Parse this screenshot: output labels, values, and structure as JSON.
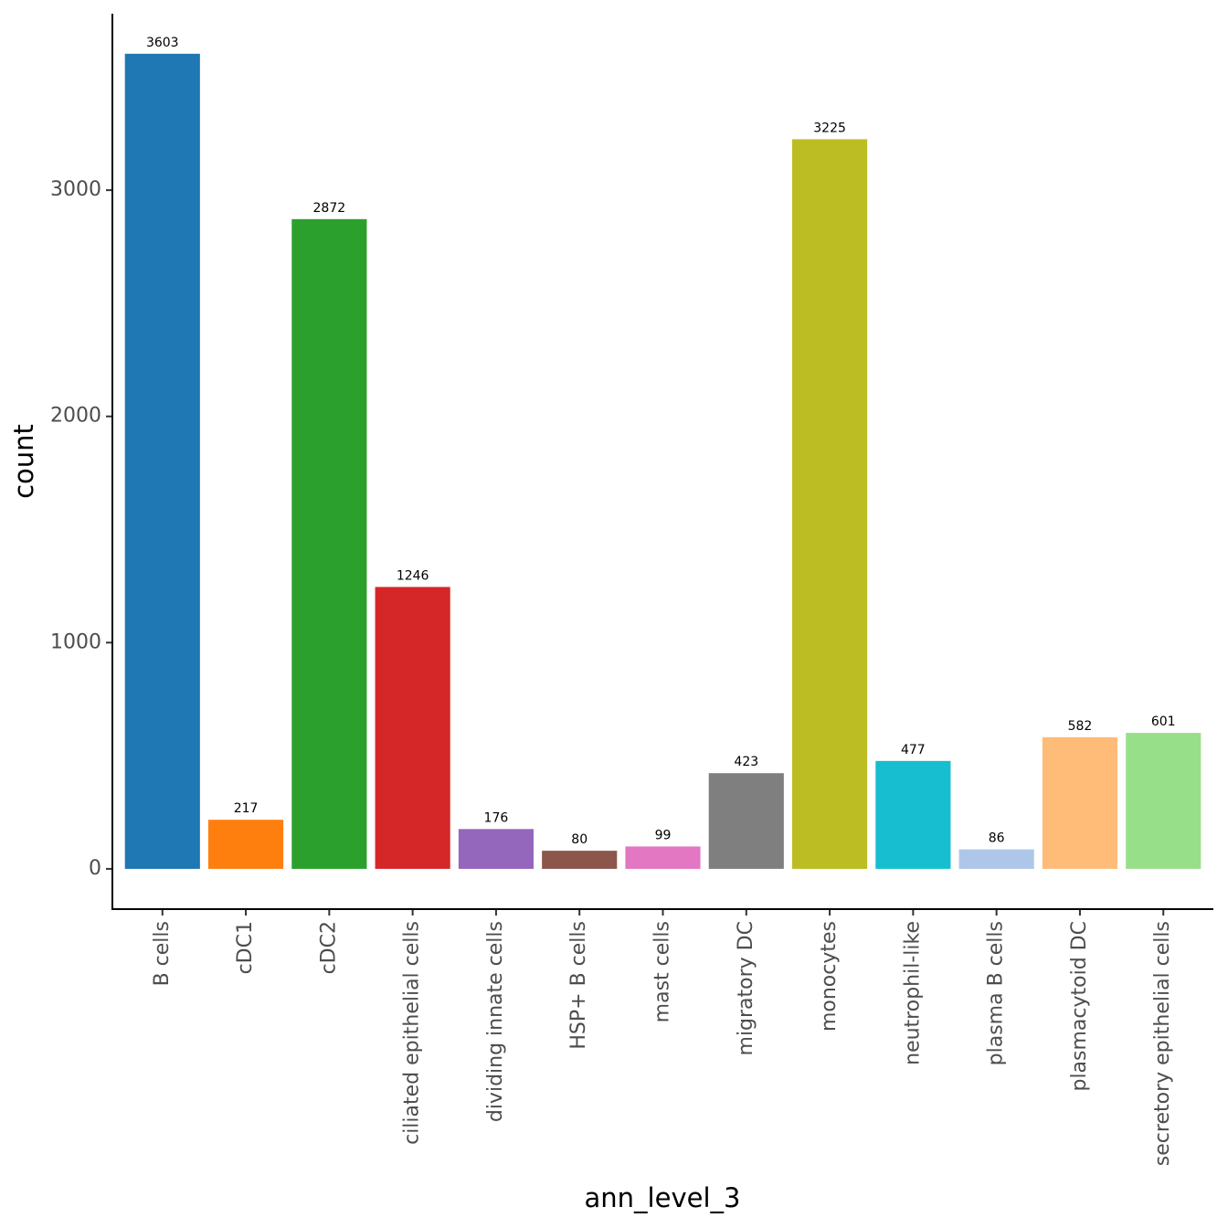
{
  "chart_data": {
    "type": "bar",
    "xlabel": "ann_level_3",
    "ylabel": "count",
    "categories": [
      "B cells",
      "cDC1",
      "cDC2",
      "ciliated epithelial cells",
      "dividing innate cells",
      "HSP+ B cells",
      "mast cells",
      "migratory DC",
      "monocytes",
      "neutrophil-like",
      "plasma B cells",
      "plasmacytoid DC",
      "secretory epithelial cells"
    ],
    "values": [
      3603,
      217,
      2872,
      1246,
      176,
      80,
      99,
      423,
      3225,
      477,
      86,
      582,
      601
    ],
    "colors": [
      "#1f77b4",
      "#ff7f0e",
      "#2ca02c",
      "#d62728",
      "#9467bd",
      "#8c564b",
      "#e377c2",
      "#7f7f7f",
      "#bcbd22",
      "#17becf",
      "#aec7e8",
      "#ffbb78",
      "#98df8a"
    ],
    "ylim": [
      -178,
      3780
    ],
    "yticks": [
      0,
      1000,
      2000,
      3000
    ],
    "grid": false
  }
}
